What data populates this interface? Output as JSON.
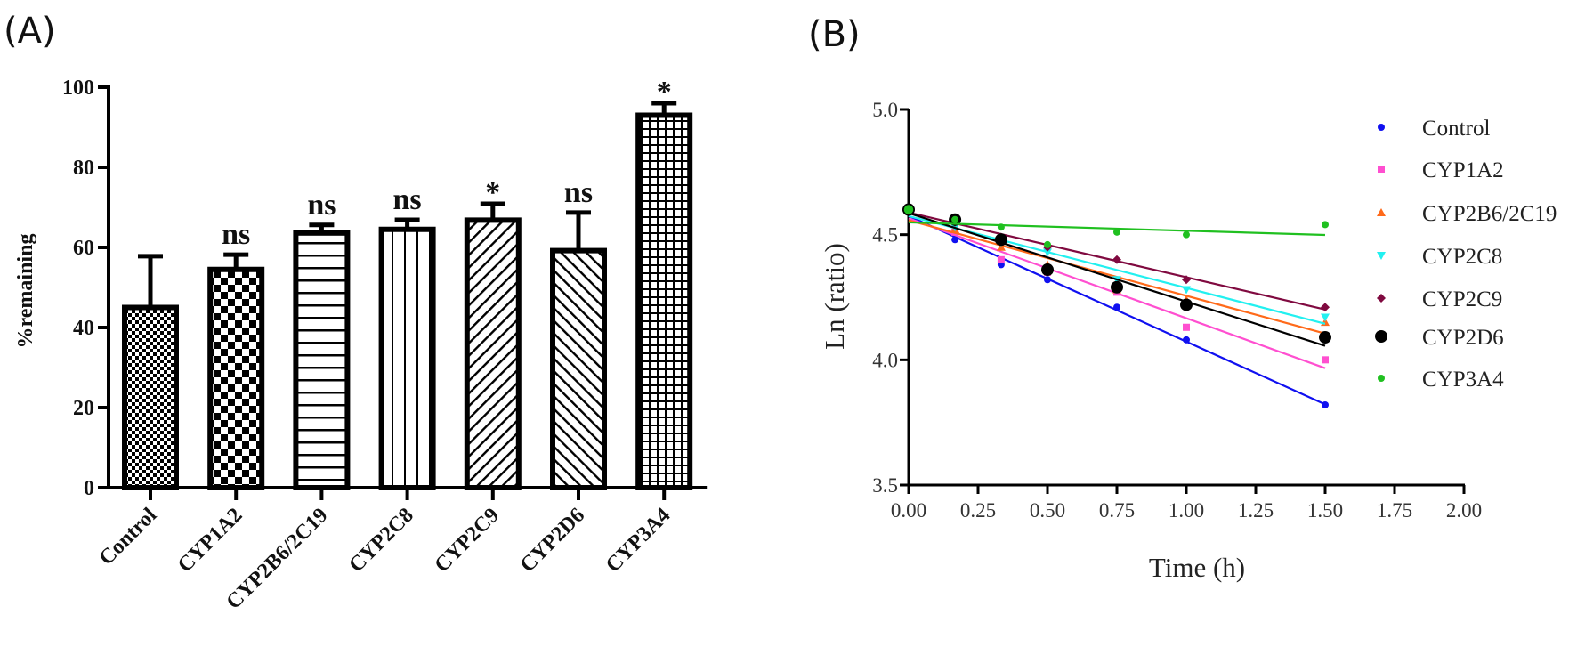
{
  "chart_data": [
    {
      "type": "bar",
      "panel_label": "(A)",
      "title": "",
      "xlabel": "",
      "ylabel": "%remaining",
      "ylim": [
        0,
        100
      ],
      "yticks": [
        "0",
        "20",
        "40",
        "60",
        "80",
        "100"
      ],
      "categories": [
        "Control",
        "CYP1A2",
        "CYP2B6/2C19",
        "CYP2C8",
        "CYP2C9",
        "CYP2D6",
        "CYP3A4"
      ],
      "values": [
        45,
        54.5,
        63.6,
        64.5,
        66.8,
        59.2,
        93
      ],
      "error_upper": [
        57.8,
        58.2,
        65.6,
        66.9,
        70.9,
        68.7,
        96
      ],
      "annotations": [
        "",
        "ns",
        "ns",
        "ns",
        "*",
        "ns",
        "*"
      ],
      "patterns": [
        "fine-checker",
        "checker",
        "horizontal-lines",
        "vertical-lines",
        "diagonal-up",
        "diagonal-down",
        "grid"
      ],
      "grid": false
    },
    {
      "type": "scatter",
      "panel_label": "(B)",
      "title": "",
      "xlabel": "Time (h)",
      "ylabel": "Ln (ratio)",
      "xlim": [
        0,
        2
      ],
      "ylim": [
        3.5,
        5.0
      ],
      "xticks": [
        "0.00",
        "0.25",
        "0.50",
        "0.75",
        "1.00",
        "1.25",
        "1.50",
        "1.75",
        "2.00"
      ],
      "yticks": [
        "3.5",
        "4.0",
        "4.5",
        "5.0"
      ],
      "x": [
        0,
        0.167,
        0.333,
        0.5,
        0.75,
        1.0,
        1.5
      ],
      "legend_position": "right",
      "fit": "linear",
      "grid": false,
      "series": [
        {
          "name": "Control",
          "color": "#1010f0",
          "marker": "circle",
          "values": [
            4.6,
            4.48,
            4.38,
            4.32,
            4.21,
            4.08,
            3.82
          ]
        },
        {
          "name": "CYP1A2",
          "color": "#ff4fd0",
          "marker": "square",
          "values": [
            4.6,
            4.51,
            4.4,
            4.35,
            4.27,
            4.13,
            4.0
          ]
        },
        {
          "name": "CYP2B6/2C19",
          "color": "#ff6a1a",
          "marker": "triangle-up",
          "values": [
            4.6,
            4.52,
            4.45,
            4.38,
            4.28,
            4.24,
            4.15
          ]
        },
        {
          "name": "CYP2C8",
          "color": "#22f0f0",
          "marker": "triangle-down",
          "values": [
            4.6,
            4.53,
            4.47,
            4.43,
            4.32,
            4.28,
            4.17
          ]
        },
        {
          "name": "CYP2C9",
          "color": "#800a40",
          "marker": "diamond",
          "values": [
            4.6,
            4.55,
            4.49,
            4.45,
            4.4,
            4.32,
            4.21
          ]
        },
        {
          "name": "CYP2D6",
          "color": "#000000",
          "marker": "big-circle",
          "values": [
            4.6,
            4.56,
            4.48,
            4.36,
            4.29,
            4.22,
            4.09
          ]
        },
        {
          "name": "CYP3A4",
          "color": "#20c020",
          "marker": "circle",
          "values": [
            4.6,
            4.56,
            4.53,
            4.46,
            4.51,
            4.5,
            4.54
          ]
        }
      ]
    }
  ]
}
